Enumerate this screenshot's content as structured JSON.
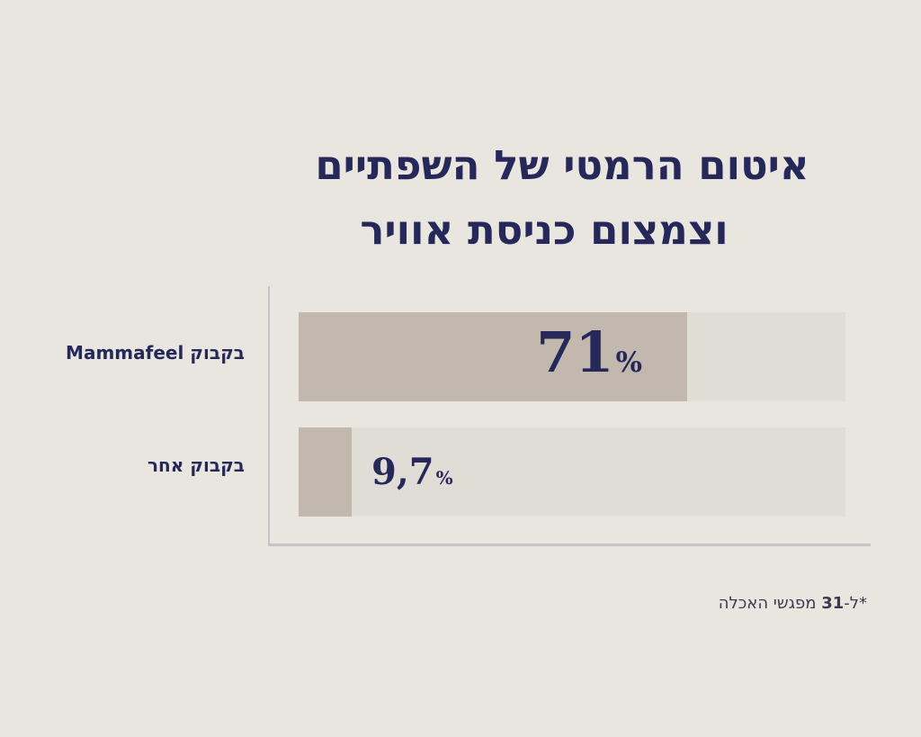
{
  "chart_data": {
    "type": "bar",
    "orientation": "horizontal",
    "title": "איטום הרמטי של השפתיים וצמצום כניסת אוויר",
    "title_lines": [
      "איטום הרמטי של השפתיים",
      "וצמצום כניסת אוויר"
    ],
    "categories": [
      "בקבוק Mammafeel",
      "בקבוק אחר"
    ],
    "values": [
      71,
      9.7
    ],
    "value_labels": [
      "71",
      "9,7"
    ],
    "unit": "%",
    "xlim": [
      0,
      100
    ],
    "grid": false,
    "legend": "none",
    "colors": {
      "fill": "#c2b8ad",
      "track": "#e0dcd6",
      "text": "#26285a",
      "axis": "#c6c3c6"
    }
  },
  "footnote": {
    "prefix": "*ל-",
    "number": "31",
    "suffix": " מפגשי האכלה"
  }
}
